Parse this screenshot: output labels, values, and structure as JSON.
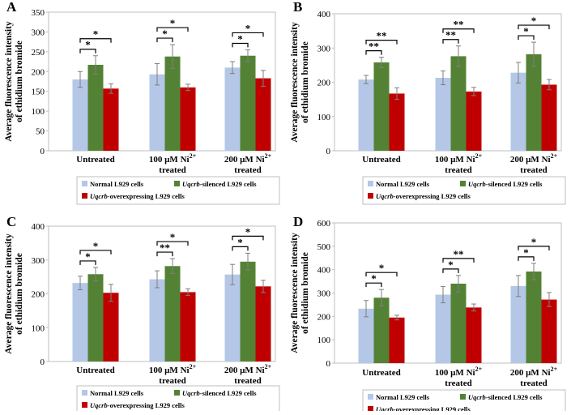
{
  "colors": {
    "normal": "#b4c7e7",
    "silenced": "#548235",
    "overexpressing": "#c00000",
    "axis": "#bfbfbf",
    "text": "#000000"
  },
  "legend": {
    "normal": "Normal L929 cells",
    "silenced_italic": "Uqcrb",
    "silenced_rest": "-silenced L929 cells",
    "over_italic": "Uqcrb",
    "over_rest": "-overexpressing L929 cells"
  },
  "categories": [
    {
      "line1": "Untreated",
      "line2": "",
      "sup": ""
    },
    {
      "line1": "100 µM Ni",
      "line2": "treated",
      "sup": "2+"
    },
    {
      "line1": "200 µM Ni",
      "line2": "treated",
      "sup": "2+"
    }
  ],
  "chart_data": [
    {
      "panel": "A",
      "type": "bar",
      "ylabel_line1": "Average fluorescence intensity",
      "ylabel_line2": "of ethidium bromide",
      "ylim": [
        0,
        350
      ],
      "yticks": [
        "0",
        "50",
        "100",
        "150",
        "200",
        "250",
        "300",
        "350"
      ],
      "series": [
        {
          "name": "Normal L929 cells",
          "values": [
            180,
            193,
            210
          ],
          "errors": [
            20,
            27,
            15
          ]
        },
        {
          "name": "Uqcrb-silenced L929 cells",
          "values": [
            217,
            238,
            240
          ],
          "errors": [
            23,
            30,
            15
          ]
        },
        {
          "name": "Uqcrb-overexpressing L929 cells",
          "values": [
            157,
            160,
            183
          ],
          "errors": [
            12,
            8,
            20
          ]
        }
      ],
      "brackets": [
        {
          "group": 0,
          "pair": "1-2",
          "label": "*"
        },
        {
          "group": 0,
          "pair": "1-3",
          "label": "*"
        },
        {
          "group": 1,
          "pair": "1-2",
          "label": "*"
        },
        {
          "group": 1,
          "pair": "1-3",
          "label": "*"
        },
        {
          "group": 2,
          "pair": "1-2",
          "label": "*"
        },
        {
          "group": 2,
          "pair": "1-3",
          "label": "*"
        }
      ]
    },
    {
      "panel": "B",
      "type": "bar",
      "ylabel_line1": "Average fluorescence intensity",
      "ylabel_line2": "of ethidium bromide",
      "ylim": [
        0,
        400
      ],
      "yticks": [
        "0",
        "100",
        "200",
        "300",
        "400"
      ],
      "series": [
        {
          "name": "Normal L929 cells",
          "values": [
            208,
            213,
            228
          ],
          "errors": [
            12,
            20,
            30
          ]
        },
        {
          "name": "Uqcrb-silenced L929 cells",
          "values": [
            258,
            276,
            282
          ],
          "errors": [
            15,
            30,
            35
          ]
        },
        {
          "name": "Uqcrb-overexpressing L929 cells",
          "values": [
            167,
            173,
            193
          ],
          "errors": [
            17,
            12,
            15
          ]
        }
      ],
      "brackets": [
        {
          "group": 0,
          "pair": "1-2",
          "label": "**"
        },
        {
          "group": 0,
          "pair": "1-3",
          "label": "**"
        },
        {
          "group": 1,
          "pair": "1-2",
          "label": "**"
        },
        {
          "group": 1,
          "pair": "1-3",
          "label": "**"
        },
        {
          "group": 2,
          "pair": "1-2",
          "label": "*"
        },
        {
          "group": 2,
          "pair": "1-3",
          "label": "*"
        }
      ]
    },
    {
      "panel": "C",
      "type": "bar",
      "ylabel_line1": "Average fluorescence intensity",
      "ylabel_line2": "of ethidium bromide",
      "ylim": [
        0,
        400
      ],
      "yticks": [
        "0",
        "100",
        "200",
        "300",
        "400"
      ],
      "series": [
        {
          "name": "Normal L929 cells",
          "values": [
            232,
            243,
            257
          ],
          "errors": [
            20,
            25,
            30
          ]
        },
        {
          "name": "Uqcrb-silenced L929 cells",
          "values": [
            258,
            282,
            295
          ],
          "errors": [
            20,
            22,
            25
          ]
        },
        {
          "name": "Uqcrb-overexpressing L929 cells",
          "values": [
            203,
            205,
            222
          ],
          "errors": [
            25,
            10,
            18
          ]
        }
      ],
      "brackets": [
        {
          "group": 0,
          "pair": "1-2",
          "label": "*"
        },
        {
          "group": 0,
          "pair": "1-3",
          "label": "*"
        },
        {
          "group": 1,
          "pair": "1-2",
          "label": "**"
        },
        {
          "group": 1,
          "pair": "1-3",
          "label": "*"
        },
        {
          "group": 2,
          "pair": "1-2",
          "label": "*"
        },
        {
          "group": 2,
          "pair": "1-3",
          "label": "*"
        }
      ]
    },
    {
      "panel": "D",
      "type": "bar",
      "ylabel_line1": "Average fluorescence intensity",
      "ylabel_line2": "of ethidium bromide",
      "ylim": [
        0,
        600
      ],
      "yticks": [
        "0",
        "100",
        "200",
        "300",
        "400",
        "500",
        "600"
      ],
      "series": [
        {
          "name": "Normal L929 cells",
          "values": [
            233,
            293,
            330
          ],
          "errors": [
            35,
            35,
            45
          ]
        },
        {
          "name": "Uqcrb-silenced L929 cells",
          "values": [
            280,
            340,
            392
          ],
          "errors": [
            35,
            35,
            35
          ]
        },
        {
          "name": "Uqcrb-overexpressing L929 cells",
          "values": [
            195,
            238,
            272
          ],
          "errors": [
            10,
            15,
            30
          ]
        }
      ],
      "brackets": [
        {
          "group": 0,
          "pair": "1-2",
          "label": "*"
        },
        {
          "group": 0,
          "pair": "1-3",
          "label": "*"
        },
        {
          "group": 1,
          "pair": "1-2",
          "label": "*"
        },
        {
          "group": 1,
          "pair": "1-3",
          "label": "**"
        },
        {
          "group": 2,
          "pair": "1-2",
          "label": "*"
        },
        {
          "group": 2,
          "pair": "1-3",
          "label": "*"
        }
      ]
    }
  ]
}
